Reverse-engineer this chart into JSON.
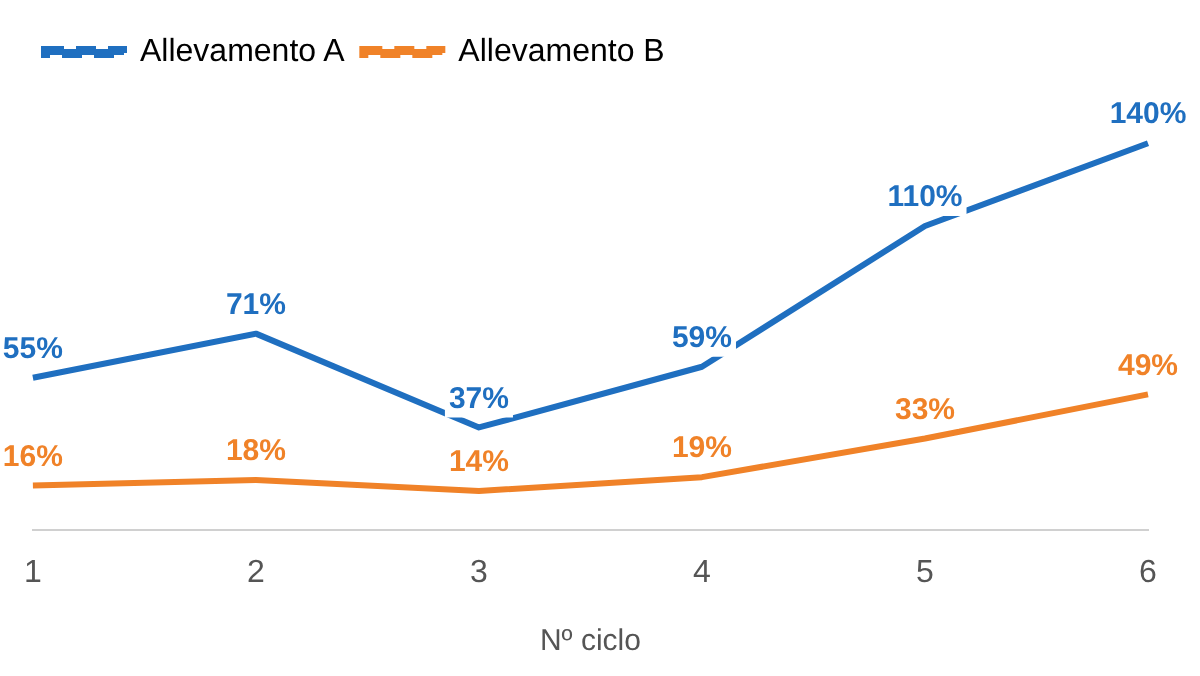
{
  "chart_data": {
    "type": "line",
    "xlabel": "Nº ciclo",
    "categories": [
      "1",
      "2",
      "3",
      "4",
      "5",
      "6"
    ],
    "series": [
      {
        "name": "Allevamento A",
        "color": "#1f6fc0",
        "values": [
          55,
          71,
          37,
          59,
          110,
          140
        ],
        "value_labels": [
          "55%",
          "71%",
          "37%",
          "59%",
          "110%",
          "140%"
        ]
      },
      {
        "name": "Allevamento B",
        "color": "#f08228",
        "values": [
          16,
          18,
          14,
          19,
          33,
          49
        ],
        "value_labels": [
          "16%",
          "18%",
          "14%",
          "19%",
          "33%",
          "49%"
        ]
      }
    ],
    "legend": "top left",
    "grid": false,
    "marker": "none",
    "line_style": "solid"
  }
}
